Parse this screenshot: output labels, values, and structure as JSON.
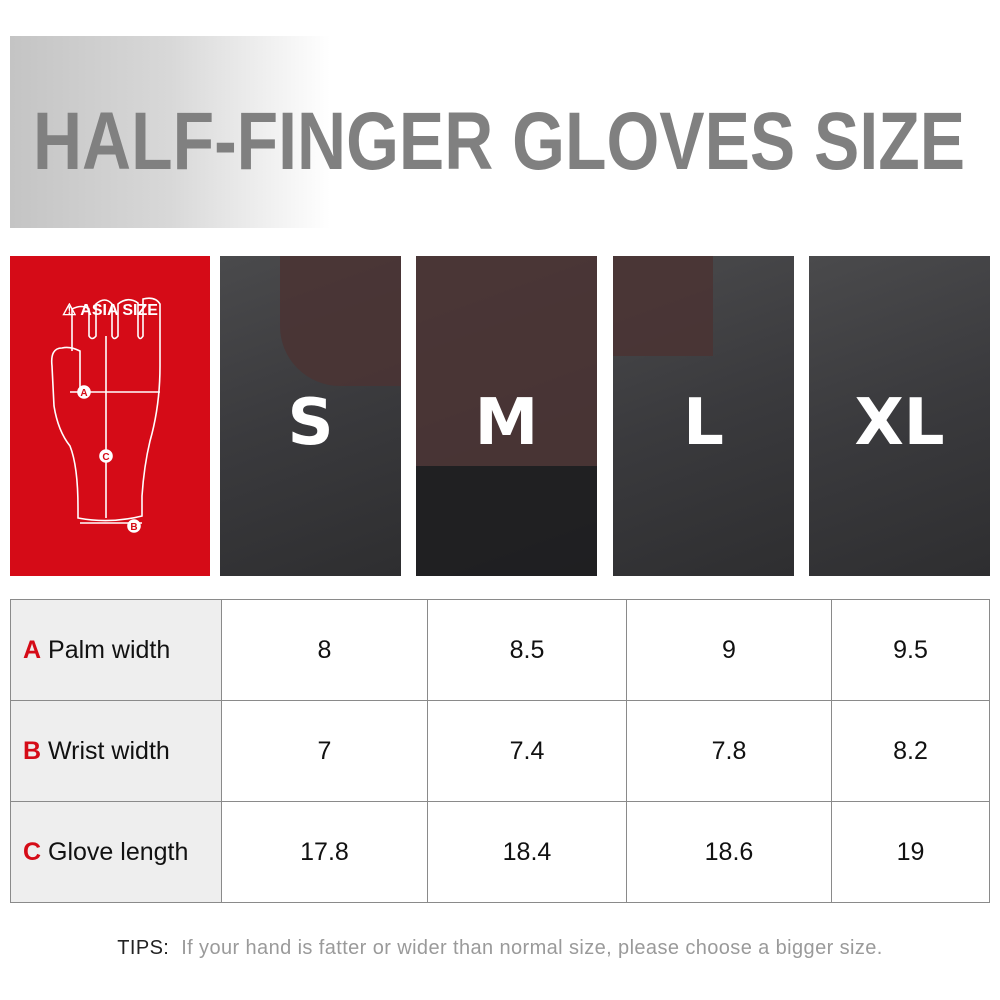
{
  "header": {
    "title": "HALF-FINGER GLOVES SIZE"
  },
  "guide": {
    "label": "ASIA SIZE",
    "icon": "warning-icon",
    "markers": [
      "A",
      "B",
      "C"
    ]
  },
  "sizes": [
    "S",
    "M",
    "L",
    "XL"
  ],
  "table": {
    "rows": [
      {
        "letter": "A",
        "label": "Palm width",
        "values": [
          "8",
          "8.5",
          "9",
          "9.5"
        ]
      },
      {
        "letter": "B",
        "label": "Wrist width",
        "values": [
          "7",
          "7.4",
          "7.8",
          "8.2"
        ]
      },
      {
        "letter": "C",
        "label": "Glove length",
        "values": [
          "17.8",
          "18.4",
          "18.6",
          "19"
        ]
      }
    ]
  },
  "tips": {
    "key": "TIPS:",
    "text": "If your hand is fatter or wider than normal size, please choose a bigger size."
  },
  "colors": {
    "accent": "#d50b17",
    "title": "#808080"
  }
}
